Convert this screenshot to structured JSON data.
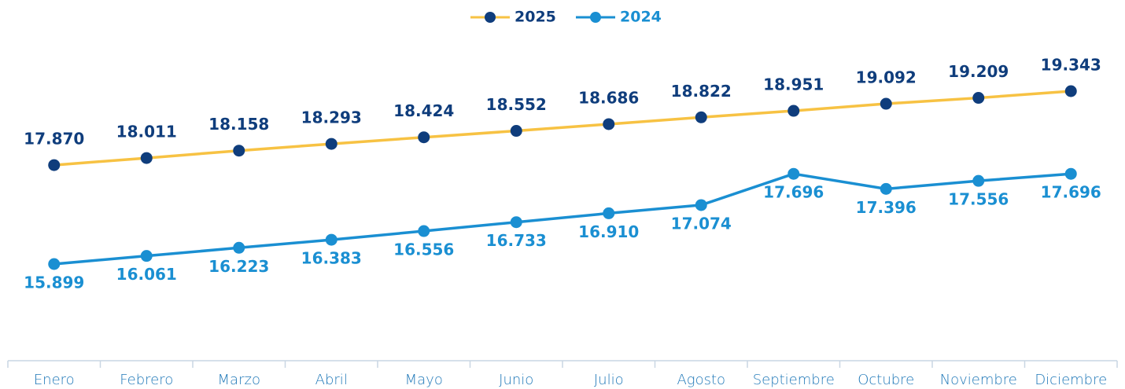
{
  "chart_data": {
    "type": "line",
    "categories": [
      "Enero",
      "Febrero",
      "Marzo",
      "Abril",
      "Mayo",
      "Junio",
      "Julio",
      "Agosto",
      "Septiembre",
      "Octubre",
      "Noviembre",
      "Diciembre"
    ],
    "series": [
      {
        "name": "2025",
        "color": "#f7c243",
        "marker_color": "#0f3d7c",
        "values": [
          17870,
          18011,
          18158,
          18293,
          18424,
          18552,
          18686,
          18822,
          18951,
          19092,
          19209,
          19343
        ],
        "value_labels": [
          "17.870",
          "18.011",
          "18.158",
          "18.293",
          "18.424",
          "18.552",
          "18.686",
          "18.822",
          "18.951",
          "19.092",
          "19.209",
          "19.343"
        ]
      },
      {
        "name": "2024",
        "color": "#1a8fd2",
        "marker_color": "#1a8fd2",
        "values": [
          15899,
          16061,
          16223,
          16383,
          16556,
          16733,
          16910,
          17074,
          17696,
          17396,
          17556,
          17696
        ],
        "value_labels": [
          "15.899",
          "16.061",
          "16.223",
          "16.383",
          "16.556",
          "16.733",
          "16.910",
          "17.074",
          "17.696",
          "17.396",
          "17.556",
          "17.696"
        ]
      }
    ],
    "legend": "top"
  }
}
